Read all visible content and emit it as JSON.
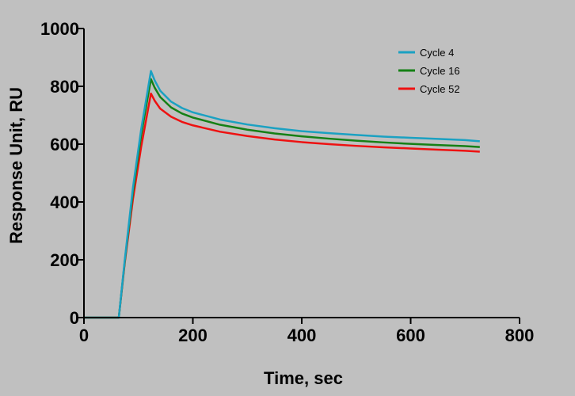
{
  "chart_data": {
    "type": "line",
    "title": "",
    "xlabel": "Time, sec",
    "ylabel": "Response Unit, RU",
    "xlim": [
      0,
      800
    ],
    "ylim": [
      0,
      1000
    ],
    "xticks": [
      0,
      200,
      400,
      600,
      800
    ],
    "yticks": [
      0,
      200,
      400,
      600,
      800,
      1000
    ],
    "grid": false,
    "legend_position": "top-right",
    "series": [
      {
        "name": "Cycle 4",
        "color": "#1ba1c2",
        "x": [
          0,
          64,
          75,
          90,
          105,
          123,
          130,
          140,
          160,
          180,
          200,
          250,
          300,
          350,
          400,
          450,
          500,
          550,
          600,
          650,
          700,
          727
        ],
        "y": [
          0,
          0,
          200,
          450,
          650,
          853,
          820,
          785,
          747,
          725,
          710,
          685,
          668,
          655,
          645,
          638,
          632,
          626,
          622,
          618,
          614,
          610
        ]
      },
      {
        "name": "Cycle 16",
        "color": "#158015",
        "x": [
          0,
          64,
          75,
          90,
          105,
          123,
          130,
          140,
          160,
          180,
          200,
          250,
          300,
          350,
          400,
          450,
          500,
          550,
          600,
          650,
          700,
          727
        ],
        "y": [
          0,
          0,
          195,
          435,
          630,
          825,
          795,
          763,
          727,
          706,
          692,
          667,
          650,
          637,
          627,
          619,
          612,
          606,
          601,
          597,
          593,
          590
        ]
      },
      {
        "name": "Cycle 52",
        "color": "#ee1111",
        "x": [
          0,
          64,
          75,
          90,
          105,
          123,
          130,
          140,
          160,
          180,
          200,
          250,
          300,
          350,
          400,
          450,
          500,
          550,
          600,
          650,
          700,
          727
        ],
        "y": [
          0,
          0,
          190,
          410,
          590,
          775,
          750,
          723,
          695,
          677,
          665,
          643,
          628,
          616,
          607,
          600,
          594,
          589,
          585,
          581,
          577,
          574
        ]
      }
    ]
  }
}
